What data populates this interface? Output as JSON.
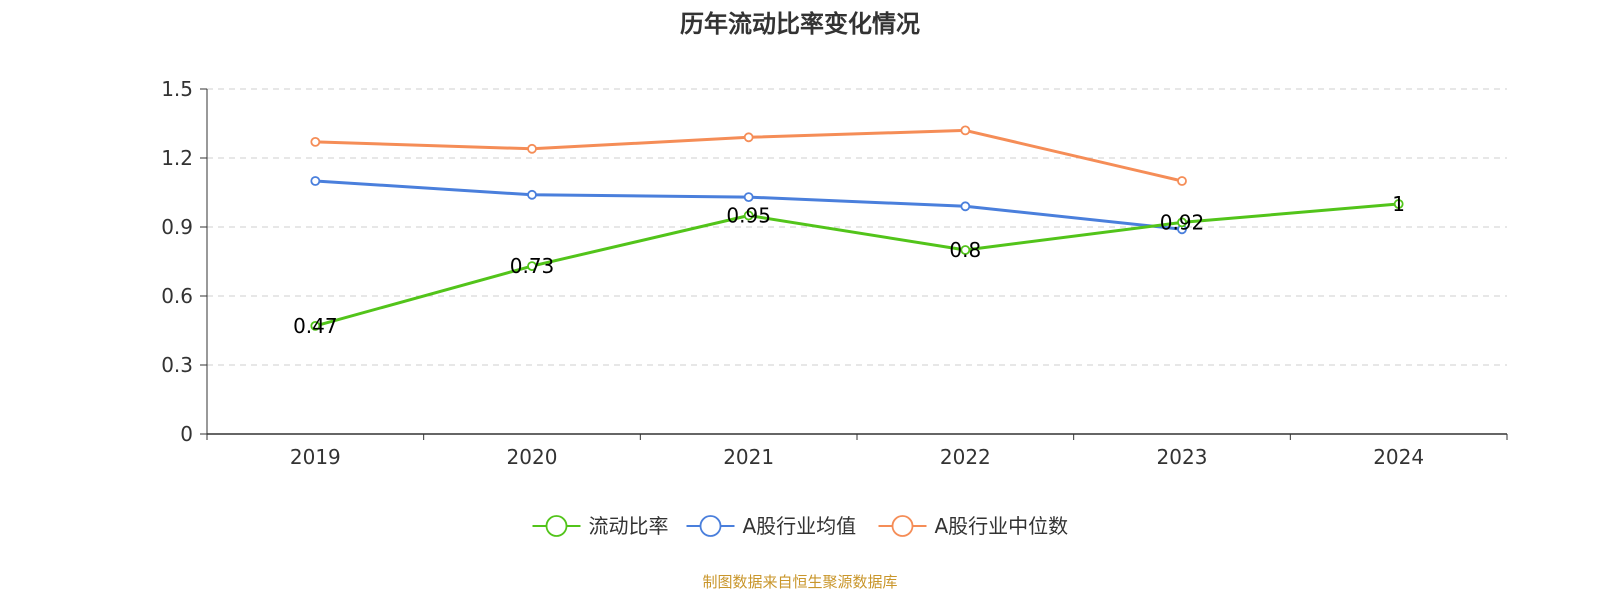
{
  "chart_data": {
    "type": "line",
    "title": "历年流动比率变化情况",
    "categories": [
      "2019",
      "2020",
      "2021",
      "2022",
      "2023",
      "2024"
    ],
    "ylim": [
      0,
      1.5
    ],
    "yticks": [
      "0",
      "0.3",
      "0.6",
      "0.9",
      "1.2",
      "1.5"
    ],
    "grid": true,
    "legend_position": "bottom",
    "series": [
      {
        "name": "流动比率",
        "color": "#52c41a",
        "values": [
          0.47,
          0.73,
          0.95,
          0.8,
          0.92,
          1
        ],
        "data_labels": [
          "0.47",
          "0.73",
          "0.95",
          "0.8",
          "0.92",
          "1"
        ]
      },
      {
        "name": "A股行业均值",
        "color": "#4a7fdc",
        "values": [
          1.1,
          1.04,
          1.03,
          0.99,
          0.89,
          null
        ]
      },
      {
        "name": "A股行业中位数",
        "color": "#f58d57",
        "values": [
          1.27,
          1.24,
          1.29,
          1.32,
          1.1,
          null
        ]
      }
    ],
    "source": "制图数据来自恒生聚源数据库",
    "source_color": "#c9962b"
  }
}
